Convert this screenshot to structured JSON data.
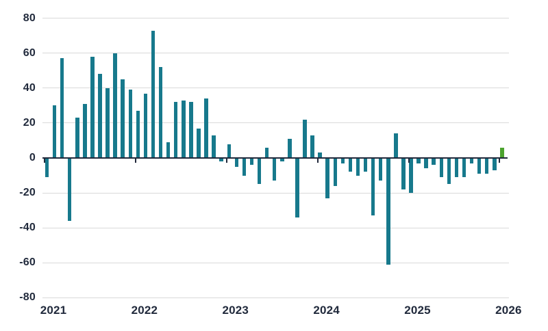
{
  "chart_data": {
    "type": "bar",
    "title": "",
    "xlabel": "",
    "ylabel": "",
    "ylim": [
      -80,
      80
    ],
    "grid": true,
    "legend": "none",
    "yticks": [
      80,
      60,
      40,
      20,
      0,
      -20,
      -40,
      -60,
      -80
    ],
    "ytick_labels": [
      "80",
      "60",
      "40",
      "20",
      "0",
      "-20",
      "-40",
      "-60",
      "-80"
    ],
    "xtick_labels": [
      "2021",
      "2022",
      "2023",
      "2024",
      "2025",
      "2026"
    ],
    "x": [
      "2021-01",
      "2021-02",
      "2021-03",
      "2021-04",
      "2021-05",
      "2021-06",
      "2021-07",
      "2021-08",
      "2021-09",
      "2021-10",
      "2021-11",
      "2021-12",
      "2022-01",
      "2022-02",
      "2022-03",
      "2022-04",
      "2022-05",
      "2022-06",
      "2022-07",
      "2022-08",
      "2022-09",
      "2022-10",
      "2022-11",
      "2022-12",
      "2023-01",
      "2023-02",
      "2023-03",
      "2023-04",
      "2023-05",
      "2023-06",
      "2023-07",
      "2023-08",
      "2023-09",
      "2023-10",
      "2023-11",
      "2023-12",
      "2024-01",
      "2024-02",
      "2024-03",
      "2024-04",
      "2024-05",
      "2024-06",
      "2024-07",
      "2024-08",
      "2024-09",
      "2024-10",
      "2024-11",
      "2024-12",
      "2025-01",
      "2025-02",
      "2025-03",
      "2025-04",
      "2025-05",
      "2025-06",
      "2025-07",
      "2025-08",
      "2025-09",
      "2025-10",
      "2025-11",
      "2025-12",
      "2026-01"
    ],
    "values": [
      -11,
      30,
      57,
      -36,
      23,
      31,
      58,
      48,
      40,
      60,
      45,
      39,
      27,
      37,
      73,
      52,
      9,
      32,
      33,
      32,
      17,
      34,
      13,
      -2,
      8,
      -5,
      -10,
      -4,
      -15,
      6,
      -13,
      -2,
      11,
      -34,
      22,
      13,
      3,
      -23,
      -16,
      -3,
      -8,
      -10,
      -8,
      -33,
      -13,
      -61,
      14,
      -18,
      -20,
      -3,
      -6,
      -4,
      -11,
      -15,
      -11,
      -11,
      -3,
      -9,
      -9,
      -7,
      6
    ],
    "highlight_index": 60,
    "colors": {
      "bar": "#17798C",
      "highlight_bar": "#4CA32E",
      "gridline": "#d9d9d9",
      "axis": "#20283A",
      "tick_label": "#212A3C"
    }
  }
}
